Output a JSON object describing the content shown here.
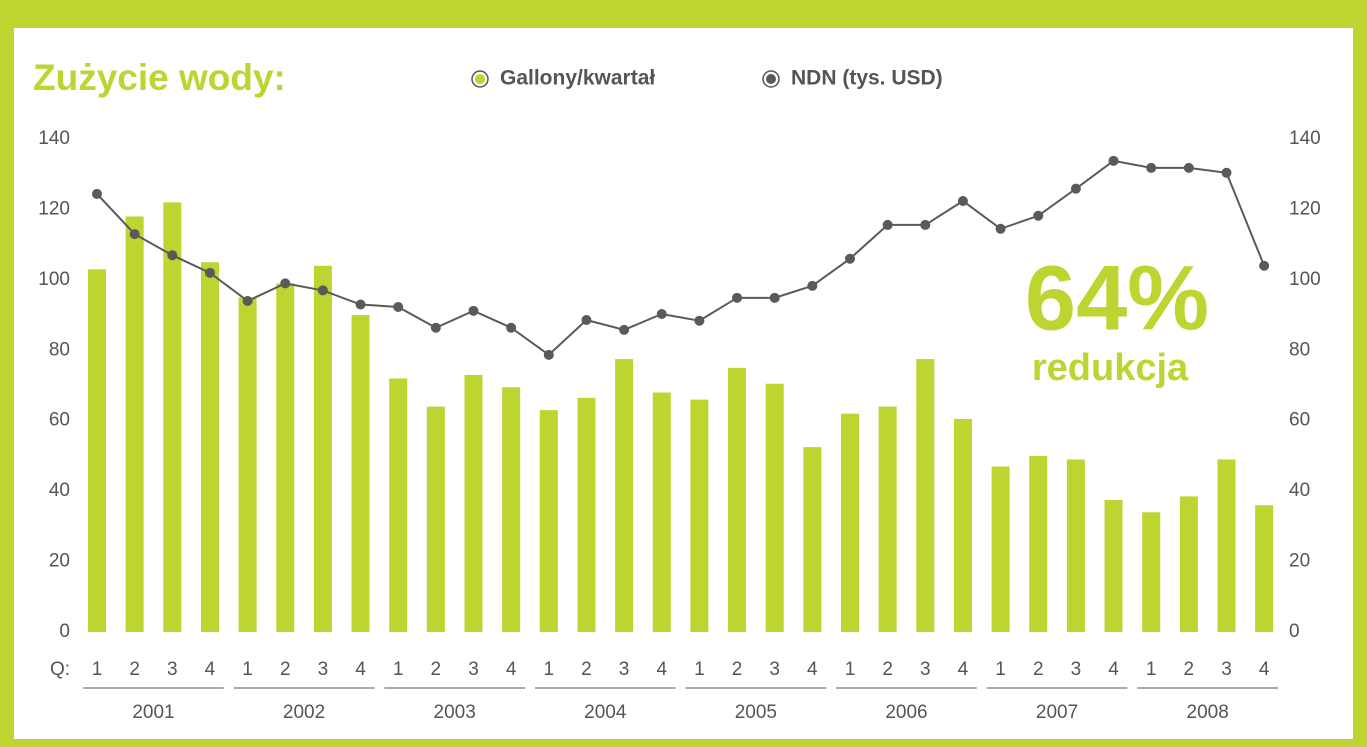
{
  "chart_data": {
    "type": "bar_line",
    "title": "Zużycie wody:",
    "annotation": "64%",
    "annotation_sub": "redukcja",
    "x_label": "Q:",
    "categories": [
      "1",
      "2",
      "3",
      "4",
      "1",
      "2",
      "3",
      "4",
      "1",
      "2",
      "3",
      "4",
      "1",
      "2",
      "3",
      "4",
      "1",
      "2",
      "3",
      "4",
      "1",
      "2",
      "3",
      "4",
      "1",
      "2",
      "3",
      "4",
      "1",
      "2",
      "3",
      "4"
    ],
    "groups": [
      "2001",
      "2002",
      "2003",
      "2004",
      "2005",
      "2006",
      "2007",
      "2008"
    ],
    "series": [
      {
        "name": "Gallony/kwartał",
        "color": "#bdd431",
        "type": "bar",
        "values": [
          103,
          118,
          122,
          105,
          95,
          99,
          104,
          90,
          72,
          64,
          73,
          69.5,
          63,
          66.5,
          77.5,
          68,
          66,
          75,
          70.5,
          52.5,
          62,
          64,
          77.5,
          60.5,
          47,
          50,
          49,
          37.5,
          34,
          38.5,
          49,
          36
        ]
      },
      {
        "name": "NDN (tys. USD)",
        "color": "#5a5a5a",
        "type": "line",
        "axis": "y2",
        "values": [
          124.4,
          113,
          107,
          102,
          94,
          99,
          97,
          93,
          92.3,
          86.4,
          91.2,
          86.4,
          78.7,
          88.6,
          85.8,
          90.3,
          88.4,
          94.9,
          94.9,
          98.3,
          106,
          115.6,
          115.6,
          122.4,
          114.5,
          118.2,
          125.9,
          133.8,
          131.8,
          131.8,
          130.4,
          104
        ]
      }
    ],
    "ylim": [
      0,
      140
    ],
    "yticks": [
      0,
      20,
      40,
      60,
      80,
      100,
      120,
      140
    ],
    "y2lim": [
      0,
      140
    ],
    "y2ticks": [
      0,
      20,
      40,
      60,
      80,
      100,
      120,
      140
    ]
  }
}
